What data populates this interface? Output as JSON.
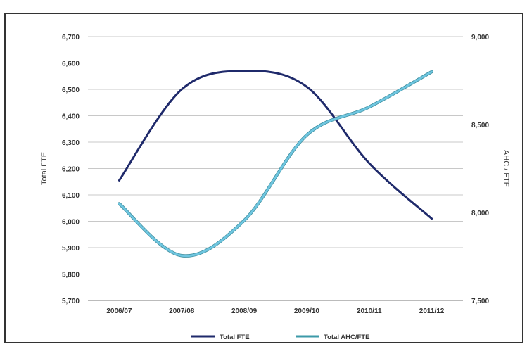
{
  "chart_data": {
    "type": "line",
    "title": "",
    "categories": [
      "2006/07",
      "2007/08",
      "2008/09",
      "2009/10",
      "2010/11",
      "2011/12"
    ],
    "ylabel": "Total FTE",
    "y2label": "AHC / FTE",
    "ylim": [
      5700,
      6700
    ],
    "y2lim": [
      7500,
      9000
    ],
    "yticks": [
      "5,700",
      "5,800",
      "5,900",
      "6,000",
      "6,100",
      "6,200",
      "6,300",
      "6,400",
      "6,500",
      "6,600",
      "6,700"
    ],
    "y2ticks": [
      "7,500",
      "8,000",
      "8,500",
      "9,000"
    ],
    "grid": true,
    "legend_position": "bottom",
    "series": [
      {
        "name": "Total FTE",
        "axis": "left",
        "color": "#1f2a6b",
        "values": [
          6155,
          6500,
          6570,
          6510,
          6220,
          6010
        ]
      },
      {
        "name": "Total AHC/FTE",
        "axis": "right",
        "color": "#6fc6e0",
        "values": [
          8050,
          7755,
          7955,
          8440,
          8600,
          8800
        ]
      }
    ]
  }
}
